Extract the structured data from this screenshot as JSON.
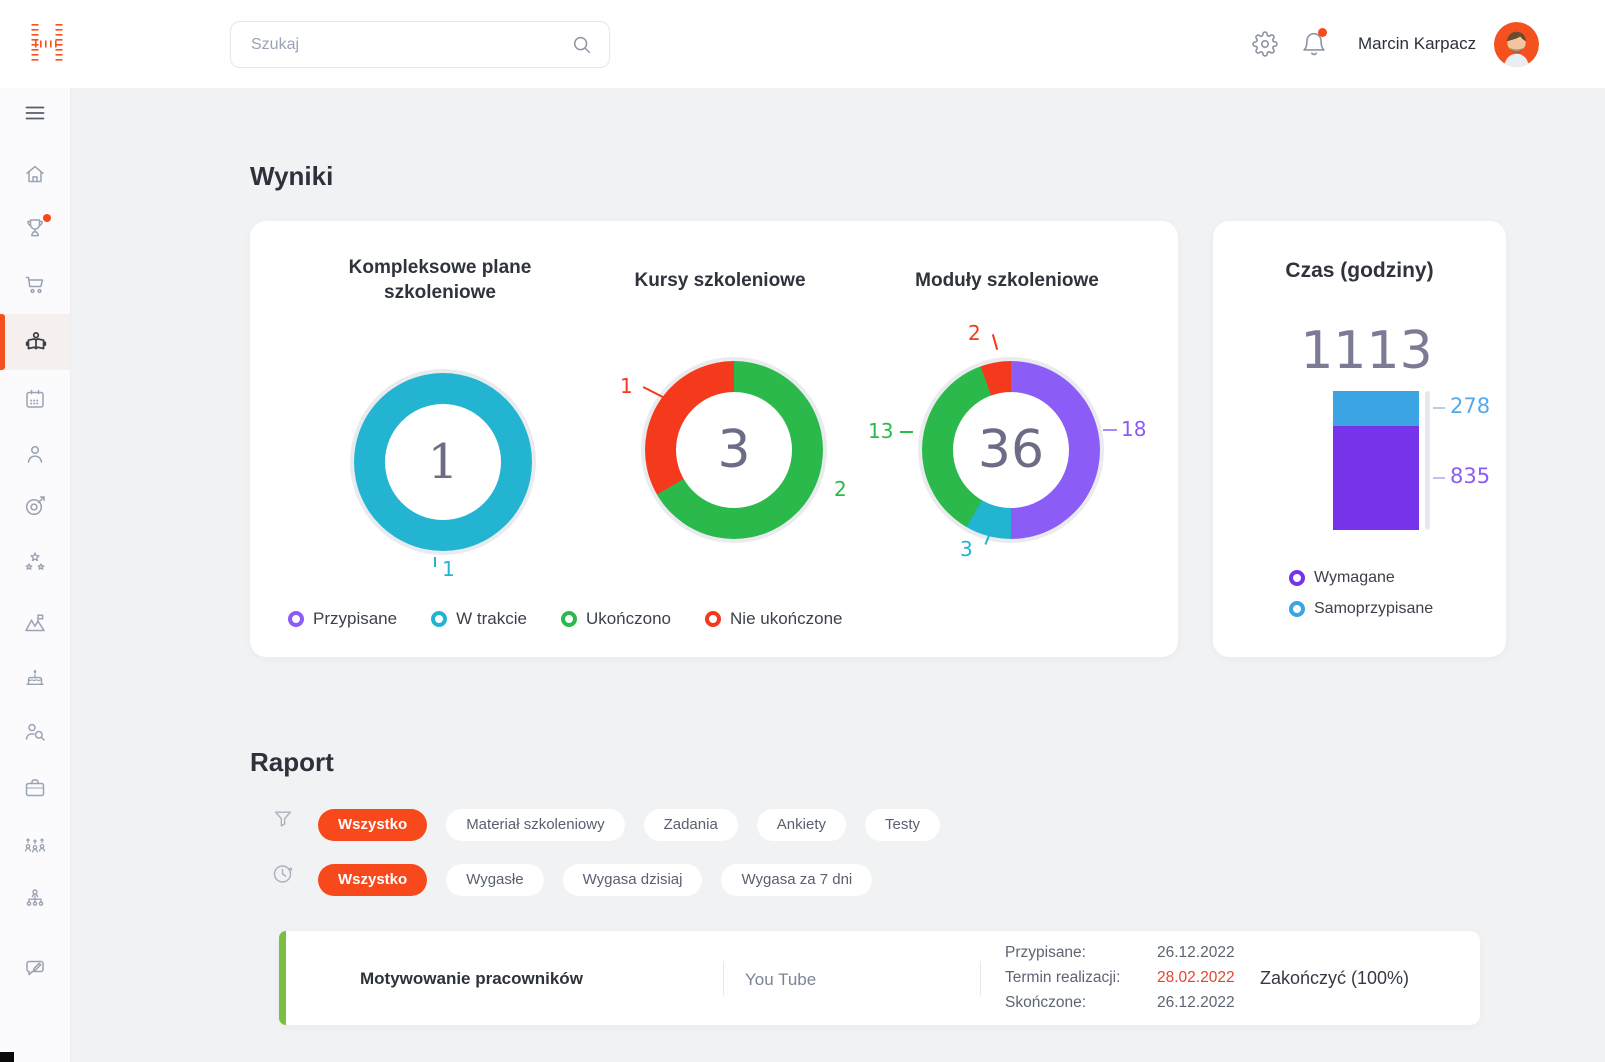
{
  "colors": {
    "accent_orange": "#f8491c",
    "logo_orange": "#f4511e",
    "cyan": "#23b4d2",
    "green": "#2cb94b",
    "red": "#f4391d",
    "purple": "#8b5cf6",
    "purple_light": "#a78bfa",
    "bar_purple": "#7733e9",
    "bar_blue": "#3ba4e2",
    "tick_blue": "#55a9e8",
    "tick_purple": "#8b5cf6",
    "deadline_red": "#e4442c",
    "report_green_bar": "#7abf44"
  },
  "topbar": {
    "search_placeholder": "Szukaj",
    "user_name": "Marcin Karpacz"
  },
  "sidebar": {
    "icons": [
      "menu",
      "home",
      "achievements",
      "shop",
      "learning",
      "calendar",
      "profile",
      "goals",
      "rewards",
      "career",
      "birthdays",
      "recruitment",
      "jobs",
      "promotions",
      "structure",
      "feedback"
    ],
    "active_icon": "learning"
  },
  "results_section": {
    "title": "Wyniki",
    "legend": [
      {
        "label": "Przypisane",
        "color": "#8b5cf6"
      },
      {
        "label": "W trakcie",
        "color": "#23b4d2"
      },
      {
        "label": "Ukończono",
        "color": "#2cb94b"
      },
      {
        "label": "Nie ukończone",
        "color": "#f4391d"
      }
    ]
  },
  "time_card": {
    "title": "Czas (godziny)",
    "total": "1113",
    "ticks": [
      {
        "value": "278",
        "color": "#55a9e8"
      },
      {
        "value": "835",
        "color": "#8b5cf6"
      }
    ],
    "legend": [
      {
        "label": "Wymagane",
        "color": "#7733e9"
      },
      {
        "label": "Samoprzypisane",
        "color": "#3ba4e2"
      }
    ]
  },
  "report_section": {
    "title": "Raport",
    "type_filters": [
      {
        "label": "Wszystko",
        "active": true
      },
      {
        "label": "Materiał szkoleniowy",
        "active": false
      },
      {
        "label": "Zadania",
        "active": false
      },
      {
        "label": "Ankiety",
        "active": false
      },
      {
        "label": "Testy",
        "active": false
      }
    ],
    "date_filters": [
      {
        "label": "Wszystko",
        "active": true
      },
      {
        "label": "Wygasłe",
        "active": false
      },
      {
        "label": "Wygasa dzisiaj",
        "active": false
      },
      {
        "label": "Wygasa za 7 dni",
        "active": false
      }
    ],
    "row": {
      "title": "Motywowanie pracowników",
      "source": "You Tube",
      "assigned_label": "Przypisane:",
      "assigned_value": "26.12.2022",
      "deadline_label": "Termin realizacji:",
      "deadline_value": "28.02.2022",
      "finished_label": "Skończone:",
      "finished_value": "26.12.2022",
      "status": "Zakończyć (100%)"
    }
  },
  "chart_data": [
    {
      "type": "pie",
      "title": "Kompleksowe plane szkoleniowe",
      "center_value": "1",
      "segments": [
        {
          "label": "W trakcie",
          "value": 1,
          "color": "#23b4d2"
        }
      ]
    },
    {
      "type": "pie",
      "title": "Kursy szkoleniowe",
      "center_value": "3",
      "segments": [
        {
          "label": "Ukończono",
          "value": 2,
          "color": "#2cb94b"
        },
        {
          "label": "Nie ukończone",
          "value": 1,
          "color": "#f4391d"
        }
      ]
    },
    {
      "type": "pie",
      "title": "Moduły szkoleniowe",
      "center_value": "36",
      "segments": [
        {
          "label": "Przypisane",
          "value": 18,
          "color": "#8b5cf6"
        },
        {
          "label": "W trakcie",
          "value": 3,
          "color": "#23b4d2"
        },
        {
          "label": "Ukończono",
          "value": 13,
          "color": "#2cb94b"
        },
        {
          "label": "Nie ukończone",
          "value": 2,
          "color": "#f4391d"
        }
      ]
    },
    {
      "type": "bar",
      "title": "Czas (godziny)",
      "stacked": true,
      "total": 1113,
      "series": [
        {
          "name": "Samoprzypisane",
          "value": 278,
          "color": "#3ba4e2"
        },
        {
          "name": "Wymagane",
          "value": 835,
          "color": "#7733e9"
        }
      ]
    }
  ]
}
